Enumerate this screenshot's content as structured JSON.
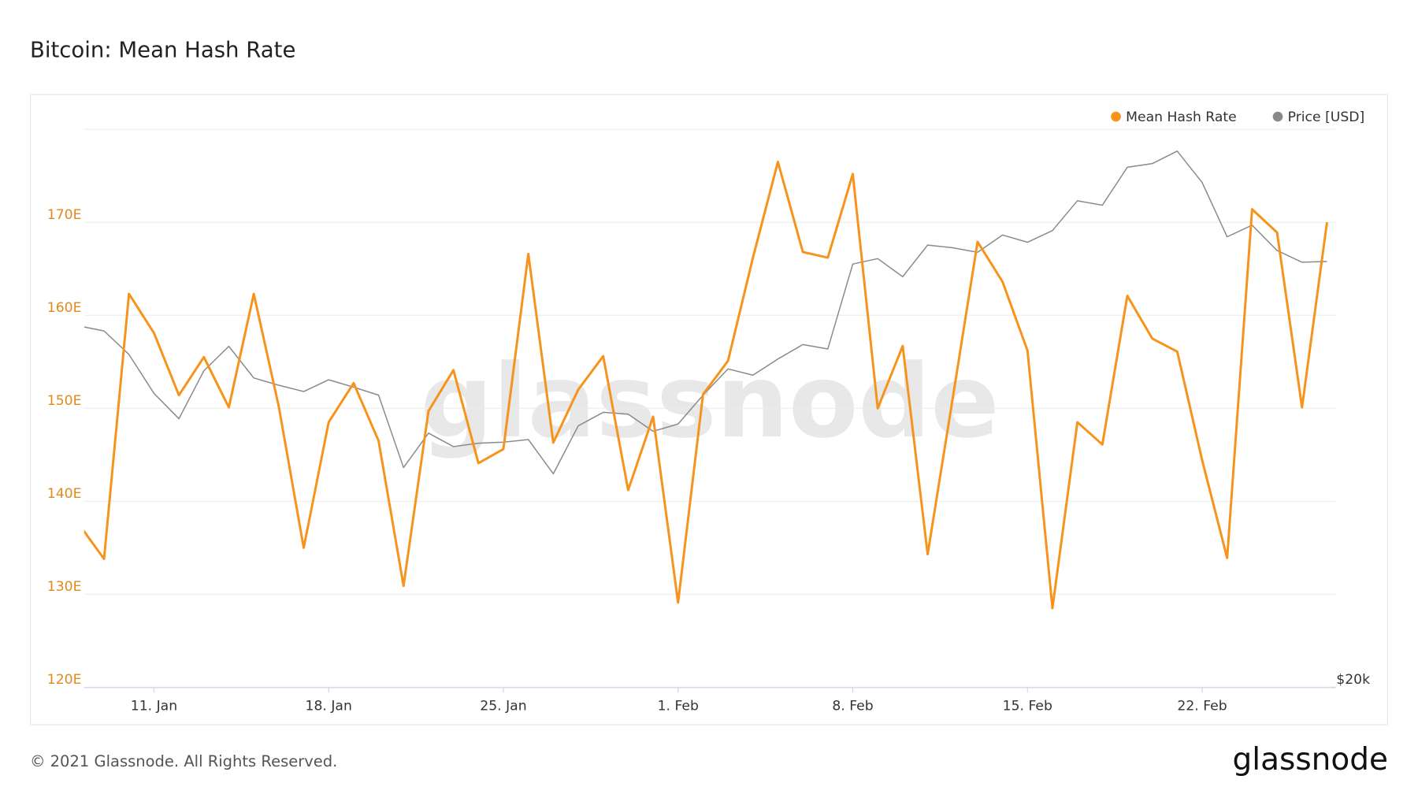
{
  "chart_data": {
    "type": "line",
    "title": "Bitcoin: Mean Hash Rate",
    "watermark": "glassnode",
    "footer": "© 2021 Glassnode. All Rights Reserved.",
    "logo": "glassnode",
    "legend": "top-right",
    "grid": true,
    "x": [
      "8. Jan",
      "9. Jan",
      "10. Jan",
      "11. Jan",
      "12. Jan",
      "13. Jan",
      "14. Jan",
      "15. Jan",
      "16. Jan",
      "17. Jan",
      "18. Jan",
      "19. Jan",
      "20. Jan",
      "21. Jan",
      "22. Jan",
      "23. Jan",
      "24. Jan",
      "25. Jan",
      "26. Jan",
      "27. Jan",
      "28. Jan",
      "29. Jan",
      "30. Jan",
      "31. Jan",
      "1. Feb",
      "2. Feb",
      "3. Feb",
      "4. Feb",
      "5. Feb",
      "6. Feb",
      "7. Feb",
      "8. Feb",
      "9. Feb",
      "10. Feb",
      "11. Feb",
      "12. Feb",
      "13. Feb",
      "14. Feb",
      "15. Feb",
      "16. Feb",
      "17. Feb",
      "18. Feb",
      "19. Feb",
      "20. Feb",
      "21. Feb",
      "22. Feb",
      "23. Feb",
      "24. Feb",
      "25. Feb",
      "26. Feb",
      "27. Feb"
    ],
    "xticks": [
      "11. Jan",
      "18. Jan",
      "25. Jan",
      "1. Feb",
      "8. Feb",
      "15. Feb",
      "22. Feb"
    ],
    "ylim": [
      120,
      180
    ],
    "yticks": [
      {
        "value": 120,
        "label": "120E"
      },
      {
        "value": 130,
        "label": "130E"
      },
      {
        "value": 140,
        "label": "140E"
      },
      {
        "value": 150,
        "label": "150E"
      },
      {
        "value": 160,
        "label": "160E"
      },
      {
        "value": 170,
        "label": "170E"
      }
    ],
    "y2lim": [
      20000,
      60000
    ],
    "y2ticks": [
      {
        "value": 20000,
        "label": "$20k"
      }
    ],
    "series": [
      {
        "name": "Mean Hash Rate",
        "color": "#f7931a",
        "axis": "y",
        "values": [
          137.5,
          133.8,
          162.3,
          158.1,
          151.4,
          155.5,
          150.1,
          162.3,
          150.2,
          135.0,
          148.5,
          152.7,
          146.5,
          130.9,
          149.7,
          154.1,
          144.1,
          145.6,
          166.6,
          146.3,
          152.0,
          155.6,
          141.2,
          149.1,
          129.1,
          151.5,
          155.1,
          166.2,
          176.5,
          166.8,
          166.2,
          175.2,
          150.0,
          156.7,
          134.3,
          151.0,
          167.9,
          163.6,
          156.2,
          128.5,
          148.5,
          146.1,
          162.1,
          157.5,
          156.1,
          144.4,
          133.9,
          171.4,
          168.9,
          150.1,
          170.0
        ]
      },
      {
        "name": "Price [USD]",
        "color": "#8a8a8a",
        "axis": "y2",
        "values": [
          45900,
          45540,
          43860,
          41070,
          39250,
          42690,
          44440,
          42170,
          41650,
          41200,
          42040,
          41520,
          40940,
          35750,
          38220,
          37250,
          37500,
          37570,
          37760,
          35300,
          38740,
          39710,
          39580,
          38350,
          38870,
          40940,
          42820,
          42370,
          43530,
          44570,
          44250,
          50340,
          50730,
          49430,
          51700,
          51510,
          51180,
          52420,
          51900,
          52740,
          54880,
          54560,
          57280,
          57540,
          58440,
          56180,
          52290,
          53130,
          51310,
          50470,
          50530
        ]
      }
    ]
  }
}
